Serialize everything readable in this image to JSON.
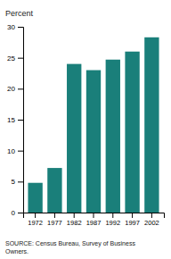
{
  "chart_data": {
    "type": "bar",
    "categories": [
      "1972",
      "1977",
      "1982",
      "1987",
      "1992",
      "1997",
      "2002"
    ],
    "values": [
      4.8,
      7.2,
      24.0,
      23.0,
      24.7,
      26.0,
      28.3
    ],
    "color": "#1a7f7a",
    "ylabel": "Percent",
    "annotations": [
      "SOURCE: Census Bureau, Survey of Business\nOwners."
    ],
    "ylim": [
      0,
      30
    ],
    "yticks": [
      0,
      5,
      10,
      15,
      20,
      25,
      30
    ],
    "grid": false
  }
}
